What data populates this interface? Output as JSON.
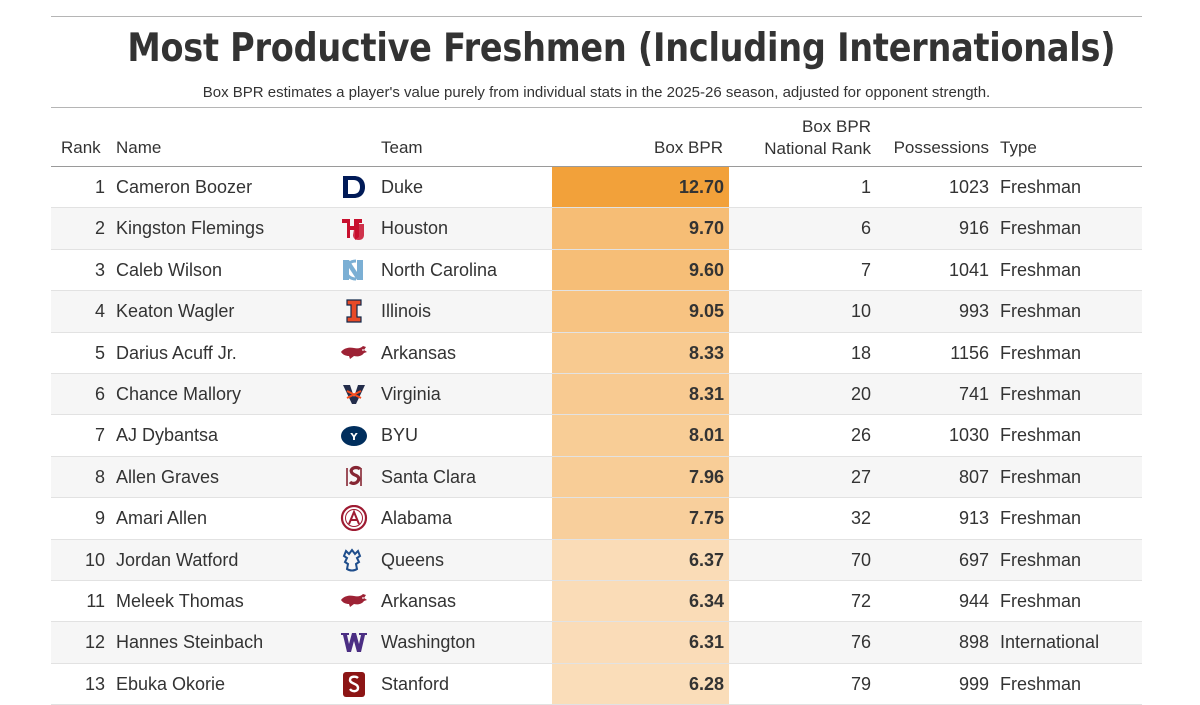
{
  "title": "Most Productive Freshmen (Including Internationals)",
  "subtitle": "Box BPR estimates a player's value purely from individual stats in the 2025-26 season, adjusted for opponent strength.",
  "columns": {
    "rank": "Rank",
    "name": "Name",
    "team": "Team",
    "box_bpr": "Box BPR",
    "national_rank_line1": "Box BPR",
    "national_rank_line2": "National Rank",
    "possessions": "Possessions",
    "type": "Type"
  },
  "colors": {
    "scale_high": "#f2a13a",
    "scale_low": "#fdf1e4"
  },
  "rows": [
    {
      "rank": "1",
      "name": "Cameron Boozer",
      "logo": "duke-logo-icon",
      "logo_color": "#001a57",
      "team": "Duke",
      "box_bpr": "12.70",
      "national_rank": "1",
      "possessions": "1023",
      "type": "Freshman"
    },
    {
      "rank": "2",
      "name": "Kingston Flemings",
      "logo": "houston-logo-icon",
      "logo_color": "#c8102e",
      "team": "Houston",
      "box_bpr": "9.70",
      "national_rank": "6",
      "possessions": "916",
      "type": "Freshman"
    },
    {
      "rank": "3",
      "name": "Caleb Wilson",
      "logo": "north-carolina-logo-icon",
      "logo_color": "#7bafd4",
      "team": "North Carolina",
      "box_bpr": "9.60",
      "national_rank": "7",
      "possessions": "1041",
      "type": "Freshman"
    },
    {
      "rank": "4",
      "name": "Keaton Wagler",
      "logo": "illinois-logo-icon",
      "logo_color": "#e84a27",
      "team": "Illinois",
      "box_bpr": "9.05",
      "national_rank": "10",
      "possessions": "993",
      "type": "Freshman"
    },
    {
      "rank": "5",
      "name": "Darius Acuff Jr.",
      "logo": "arkansas-logo-icon",
      "logo_color": "#9d2235",
      "team": "Arkansas",
      "box_bpr": "8.33",
      "national_rank": "18",
      "possessions": "1156",
      "type": "Freshman"
    },
    {
      "rank": "6",
      "name": "Chance Mallory",
      "logo": "virginia-logo-icon",
      "logo_color": "#f84c1e",
      "team": "Virginia",
      "box_bpr": "8.31",
      "national_rank": "20",
      "possessions": "741",
      "type": "Freshman"
    },
    {
      "rank": "7",
      "name": "AJ Dybantsa",
      "logo": "byu-logo-icon",
      "logo_color": "#002e5d",
      "team": "BYU",
      "box_bpr": "8.01",
      "national_rank": "26",
      "possessions": "1030",
      "type": "Freshman"
    },
    {
      "rank": "8",
      "name": "Allen Graves",
      "logo": "santa-clara-logo-icon",
      "logo_color": "#862633",
      "team": "Santa Clara",
      "box_bpr": "7.96",
      "national_rank": "27",
      "possessions": "807",
      "type": "Freshman"
    },
    {
      "rank": "9",
      "name": "Amari Allen",
      "logo": "alabama-logo-icon",
      "logo_color": "#9e1b32",
      "team": "Alabama",
      "box_bpr": "7.75",
      "national_rank": "32",
      "possessions": "913",
      "type": "Freshman"
    },
    {
      "rank": "10",
      "name": "Jordan Watford",
      "logo": "queens-logo-icon",
      "logo_color": "#1f4e8c",
      "team": "Queens",
      "box_bpr": "6.37",
      "national_rank": "70",
      "possessions": "697",
      "type": "Freshman"
    },
    {
      "rank": "11",
      "name": "Meleek Thomas",
      "logo": "arkansas-logo-icon",
      "logo_color": "#9d2235",
      "team": "Arkansas",
      "box_bpr": "6.34",
      "national_rank": "72",
      "possessions": "944",
      "type": "Freshman"
    },
    {
      "rank": "12",
      "name": "Hannes Steinbach",
      "logo": "washington-logo-icon",
      "logo_color": "#4b2e83",
      "team": "Washington",
      "box_bpr": "6.31",
      "national_rank": "76",
      "possessions": "898",
      "type": "International"
    },
    {
      "rank": "13",
      "name": "Ebuka Okorie",
      "logo": "stanford-logo-icon",
      "logo_color": "#8c1515",
      "team": "Stanford",
      "box_bpr": "6.28",
      "national_rank": "79",
      "possessions": "999",
      "type": "Freshman"
    }
  ]
}
